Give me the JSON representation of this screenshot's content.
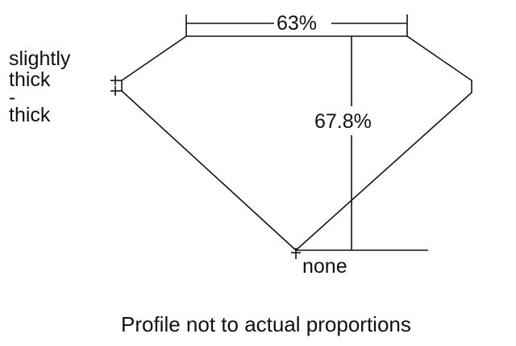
{
  "diagram": {
    "table_percent": "63%",
    "depth_percent": "67.8%",
    "girdle_label_lines": [
      "slightly",
      "thick",
      "-",
      "thick"
    ],
    "culet_label": "none",
    "caption": "Profile not to actual proportions",
    "line_color": "#111111"
  }
}
